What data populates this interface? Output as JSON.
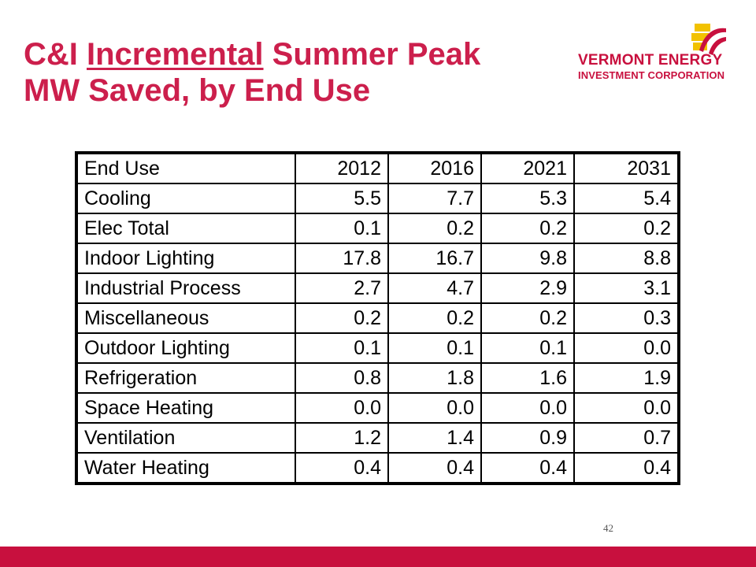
{
  "title": {
    "prefix": "C&I ",
    "underlined": "Incremental",
    "suffix": " Summer Peak",
    "line2": "MW Saved, by End Use"
  },
  "logo": {
    "line1": "VERMONT ENERGY",
    "line2": "INVESTMENT CORPORATION",
    "colors": {
      "red": "#c8103e",
      "yellow": "#f2c200"
    }
  },
  "table": {
    "headers": [
      "End Use",
      "2012",
      "2016",
      "2021",
      "2031"
    ],
    "rows": [
      {
        "name": "Cooling",
        "values": [
          "5.5",
          "7.7",
          "5.3",
          "5.4"
        ]
      },
      {
        "name": "Elec Total",
        "values": [
          "0.1",
          "0.2",
          "0.2",
          "0.2"
        ]
      },
      {
        "name": "Indoor Lighting",
        "values": [
          "17.8",
          "16.7",
          "9.8",
          "8.8"
        ]
      },
      {
        "name": "Industrial Process",
        "values": [
          "2.7",
          "4.7",
          "2.9",
          "3.1"
        ]
      },
      {
        "name": "Miscellaneous",
        "values": [
          "0.2",
          "0.2",
          "0.2",
          "0.3"
        ]
      },
      {
        "name": "Outdoor Lighting",
        "values": [
          "0.1",
          "0.1",
          "0.1",
          "0.0"
        ]
      },
      {
        "name": "Refrigeration",
        "values": [
          "0.8",
          "1.8",
          "1.6",
          "1.9"
        ]
      },
      {
        "name": "Space Heating",
        "values": [
          "0.0",
          "0.0",
          "0.0",
          "0.0"
        ]
      },
      {
        "name": "Ventilation",
        "values": [
          "1.2",
          "1.4",
          "0.9",
          "0.7"
        ]
      },
      {
        "name": "Water Heating",
        "values": [
          "0.4",
          "0.4",
          "0.4",
          "0.4"
        ]
      }
    ]
  },
  "page_number": "42",
  "colors": {
    "accent": "#cc1f4c",
    "band": "#c8103e"
  }
}
